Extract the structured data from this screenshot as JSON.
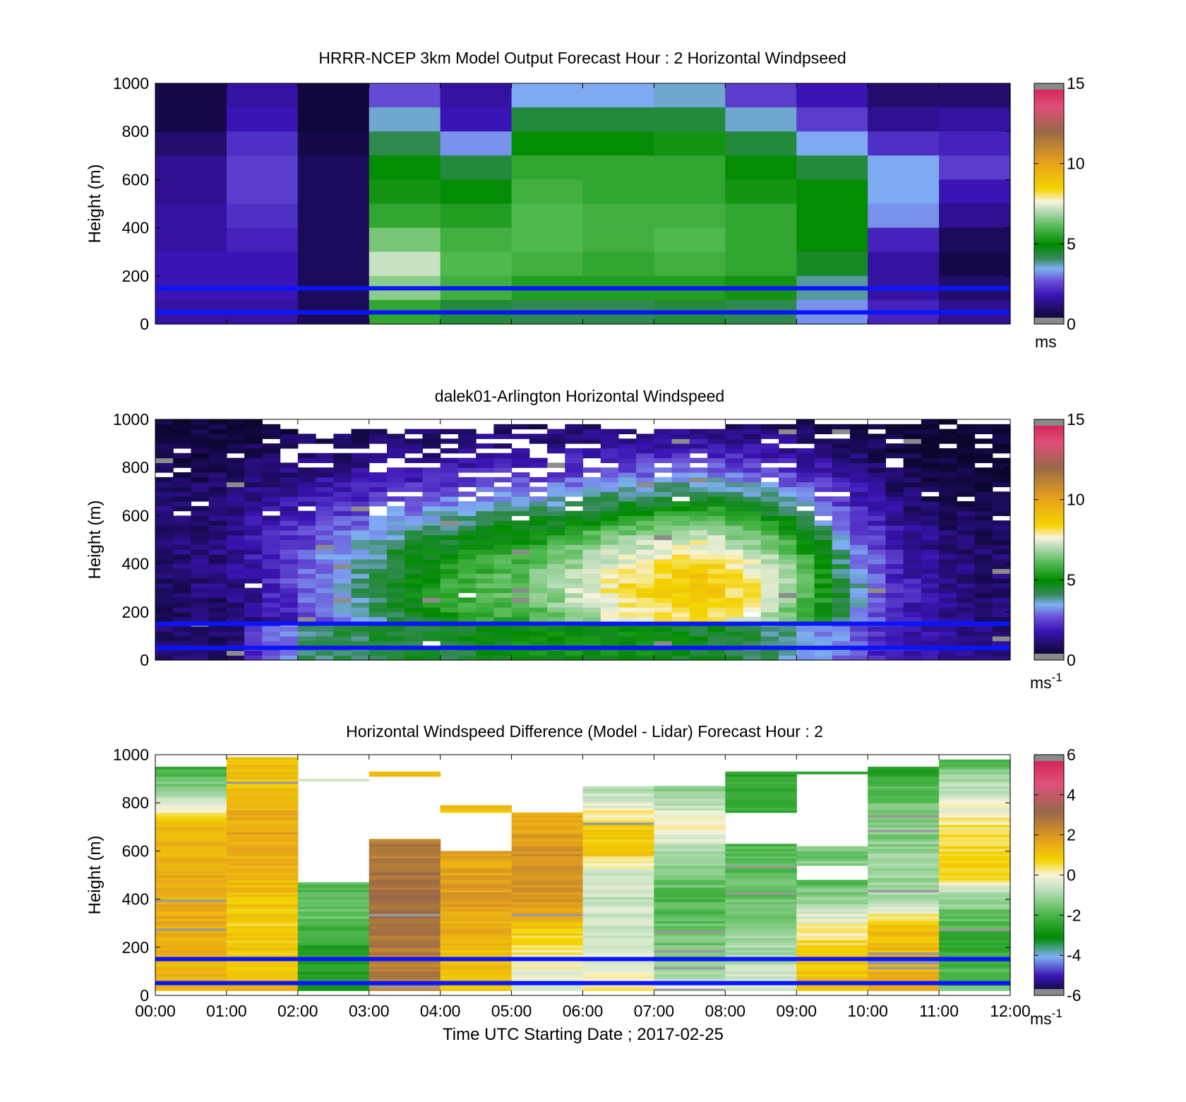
{
  "figure": {
    "xlabel": "Time UTC  Starting Date ; 2017-02-25",
    "xticks": [
      "00:00",
      "01:00",
      "02:00",
      "03:00",
      "04:00",
      "05:00",
      "06:00",
      "07:00",
      "08:00",
      "09:00",
      "10:00",
      "11:00",
      "12:00"
    ],
    "ylabel": "Height (m)",
    "yticks": [
      "0",
      "200",
      "400",
      "600",
      "800",
      "1000"
    ]
  },
  "chart_data": [
    {
      "type": "heatmap",
      "title": "HRRR-NCEP 3km Model Output   Forecast Hour : 2 Horizontal Windpseed",
      "ylabel": "Height (m)",
      "xlim": [
        0,
        12
      ],
      "ylim": [
        0,
        1000
      ],
      "colorbar": {
        "ticks": [
          "0",
          "5",
          "10",
          "15"
        ],
        "range": [
          0,
          15
        ],
        "unit": "ms",
        "scheme": "wind"
      },
      "reference_lines_m": [
        150,
        50
      ],
      "column_hours": [
        0,
        1,
        2,
        3,
        4,
        5,
        6,
        7,
        8,
        9,
        10,
        11
      ],
      "row_heights_m": [
        1000,
        900,
        800,
        700,
        600,
        500,
        400,
        300,
        200,
        100,
        0
      ],
      "values_ms": [
        [
          0.6,
          1.6,
          0.4,
          2.6,
          1.6,
          3.4,
          3.4,
          3.6,
          2.4,
          1.8,
          1.0,
          1.0
        ],
        [
          0.6,
          1.8,
          0.4,
          3.6,
          1.8,
          4.4,
          4.4,
          4.4,
          3.6,
          2.4,
          1.4,
          1.6
        ],
        [
          1.0,
          2.2,
          0.6,
          4.2,
          3.2,
          5.0,
          5.0,
          5.2,
          4.4,
          3.4,
          2.2,
          2.0
        ],
        [
          1.4,
          2.4,
          0.8,
          5.0,
          4.4,
          5.6,
          5.6,
          5.6,
          5.0,
          4.4,
          3.4,
          2.4
        ],
        [
          1.4,
          2.4,
          0.8,
          5.2,
          5.0,
          5.8,
          5.6,
          5.6,
          5.2,
          5.0,
          3.4,
          1.8
        ],
        [
          1.6,
          2.2,
          0.8,
          5.6,
          5.4,
          6.0,
          5.8,
          5.8,
          5.6,
          5.0,
          3.2,
          1.4
        ],
        [
          1.6,
          2.0,
          0.8,
          6.4,
          5.8,
          6.0,
          5.8,
          6.0,
          5.6,
          5.0,
          2.0,
          0.8
        ],
        [
          1.8,
          1.8,
          0.8,
          7.2,
          6.0,
          5.8,
          5.6,
          5.8,
          5.6,
          4.6,
          1.6,
          0.6
        ],
        [
          1.8,
          1.8,
          0.8,
          6.6,
          5.8,
          5.4,
          5.4,
          5.4,
          5.2,
          3.8,
          1.6,
          1.0
        ],
        [
          1.6,
          1.6,
          0.8,
          5.6,
          4.4,
          4.2,
          4.2,
          4.4,
          4.2,
          3.2,
          2.0,
          1.4
        ]
      ]
    },
    {
      "type": "heatmap",
      "title": "dalek01-Arlington  Horizontal Windspeed",
      "ylabel": "Height (m)",
      "xlim": [
        0,
        12
      ],
      "ylim": [
        0,
        1000
      ],
      "colorbar": {
        "ticks": [
          "0",
          "5",
          "10",
          "15"
        ],
        "range": [
          0,
          15
        ],
        "unit": "ms",
        "unit_sup": "-1",
        "scheme": "wind"
      },
      "reference_lines_m": [
        150,
        50
      ],
      "column_hours": [
        0.0,
        0.25,
        0.5,
        0.75,
        1.0,
        1.25,
        1.5,
        1.75,
        2.0,
        2.25,
        2.5,
        2.75,
        3.0,
        3.25,
        3.5,
        3.75,
        4.0,
        4.25,
        4.5,
        4.75,
        5.0,
        5.25,
        5.5,
        5.75,
        6.0,
        6.25,
        6.5,
        6.75,
        7.0,
        7.25,
        7.5,
        7.75,
        8.0,
        8.25,
        8.5,
        8.75,
        9.0,
        9.25,
        9.5,
        9.75,
        10.0,
        10.25,
        10.5,
        10.75,
        11.0,
        11.25,
        11.5,
        11.75
      ],
      "profile_top_m": [
        1000,
        1000,
        1000,
        1000,
        1000,
        990,
        975,
        950,
        935,
        945,
        950,
        960,
        955,
        955,
        960,
        955,
        950,
        955,
        960,
        965,
        975,
        980,
        985,
        975,
        975,
        960,
        960,
        950,
        945,
        950,
        955,
        960,
        965,
        970,
        975,
        980,
        985,
        975,
        975,
        970,
        965,
        970,
        975,
        985,
        985,
        980,
        975,
        970
      ],
      "peak_height_m": [
        450,
        450,
        450,
        450,
        450,
        420,
        400,
        380,
        350,
        340,
        330,
        320,
        310,
        310,
        300,
        300,
        300,
        300,
        300,
        300,
        300,
        300,
        300,
        300,
        300,
        300,
        300,
        300,
        300,
        300,
        300,
        300,
        300,
        300,
        300,
        300,
        300,
        300,
        300,
        300,
        300,
        300,
        300,
        300,
        300,
        300,
        300,
        300
      ],
      "peak_speed_ms": [
        1.0,
        1.0,
        1.1,
        1.1,
        1.3,
        1.6,
        1.9,
        2.2,
        2.6,
        2.9,
        3.2,
        3.6,
        4.0,
        4.4,
        4.7,
        5.0,
        5.2,
        5.4,
        5.6,
        5.8,
        6.0,
        6.2,
        6.4,
        6.8,
        7.1,
        7.5,
        7.8,
        8.0,
        8.2,
        8.5,
        8.6,
        8.4,
        8.0,
        7.6,
        7.1,
        6.5,
        5.8,
        5.0,
        4.0,
        3.2,
        2.6,
        2.0,
        1.7,
        1.4,
        1.2,
        1.1,
        1.0,
        1.0
      ],
      "low_level_speed_ms": [
        1.0,
        1.0,
        1.0,
        1.0,
        1.0,
        2.2,
        2.8,
        3.0,
        4.0,
        4.0,
        4.2,
        4.2,
        4.4,
        4.4,
        4.5,
        4.5,
        4.5,
        4.5,
        4.8,
        4.8,
        5.0,
        5.0,
        5.0,
        5.0,
        5.0,
        5.0,
        5.0,
        5.0,
        4.8,
        4.8,
        4.6,
        4.6,
        4.4,
        4.2,
        4.0,
        3.8,
        3.4,
        3.2,
        3.0,
        2.6,
        2.2,
        2.0,
        1.8,
        1.6,
        1.4,
        1.4,
        1.4,
        1.2
      ]
    },
    {
      "type": "heatmap",
      "title": "Horizontal Windspeed Difference (Model - Lidar) Forecast Hour : 2",
      "ylabel": "Height (m)",
      "xlabel": "Time UTC  Starting Date ; 2017-02-25",
      "xlim": [
        0,
        12
      ],
      "ylim": [
        0,
        1000
      ],
      "colorbar": {
        "ticks": [
          "-6",
          "-4",
          "-2",
          "0",
          "2",
          "4",
          "6"
        ],
        "range": [
          -6,
          6
        ],
        "unit": "ms",
        "unit_sup": "-1",
        "scheme": "diff"
      },
      "reference_lines_m": [
        150,
        50
      ],
      "column_hours": [
        0,
        1,
        2,
        3,
        4,
        5,
        6,
        7,
        8,
        9,
        10,
        11
      ],
      "column_top_m": [
        945,
        990,
        900,
        925,
        790,
        760,
        870,
        870,
        930,
        925,
        945,
        980
      ],
      "blank_ranges_m": [
        [],
        [],
        [
          [
            470,
            890
          ]
        ],
        [
          [
            650,
            905
          ]
        ],
        [
          [
            600,
            690
          ],
          [
            695,
            760
          ]
        ],
        [],
        [],
        [],
        [
          [
            630,
            760
          ]
        ],
        [
          [
            480,
            540
          ],
          [
            620,
            915
          ]
        ],
        [],
        []
      ],
      "difference_profiles_ms": [
        [
          [
            0,
            1.4
          ],
          [
            200,
            1.5
          ],
          [
            500,
            1.5
          ],
          [
            700,
            1.2
          ],
          [
            800,
            -0.6
          ],
          [
            945,
            -2.2
          ]
        ],
        [
          [
            0,
            1.2
          ],
          [
            300,
            0.8
          ],
          [
            500,
            1.2
          ],
          [
            700,
            1.6
          ],
          [
            900,
            1.0
          ],
          [
            990,
            1.0
          ]
        ],
        [
          [
            0,
            -2.6
          ],
          [
            200,
            -2.4
          ],
          [
            350,
            -1.6
          ],
          [
            470,
            -2.0
          ],
          [
            900,
            -0.5
          ]
        ],
        [
          [
            0,
            2.5
          ],
          [
            200,
            2.6
          ],
          [
            400,
            3.0
          ],
          [
            600,
            2.6
          ],
          [
            650,
            2.6
          ],
          [
            905,
            1.5
          ],
          [
            925,
            1.2
          ]
        ],
        [
          [
            0,
            1.0
          ],
          [
            200,
            1.2
          ],
          [
            400,
            1.8
          ],
          [
            600,
            1.6
          ],
          [
            690,
            1.2
          ],
          [
            790,
            1.0
          ]
        ],
        [
          [
            0,
            -0.6
          ],
          [
            200,
            0.4
          ],
          [
            400,
            2.0
          ],
          [
            600,
            2.0
          ],
          [
            760,
            1.4
          ]
        ],
        [
          [
            0,
            0.5
          ],
          [
            200,
            -0.6
          ],
          [
            500,
            -0.6
          ],
          [
            600,
            1.0
          ],
          [
            700,
            0.8
          ],
          [
            870,
            -1.0
          ]
        ],
        [
          [
            0,
            -0.2
          ],
          [
            200,
            -1.4
          ],
          [
            400,
            -2.0
          ],
          [
            600,
            -0.8
          ],
          [
            700,
            0.3
          ],
          [
            870,
            -1.4
          ]
        ],
        [
          [
            0,
            -0.3
          ],
          [
            200,
            -1.0
          ],
          [
            400,
            -1.6
          ],
          [
            630,
            -2.0
          ],
          [
            760,
            -2.2
          ],
          [
            930,
            -2.4
          ]
        ],
        [
          [
            0,
            1.2
          ],
          [
            200,
            0.8
          ],
          [
            300,
            0.0
          ],
          [
            480,
            -2.0
          ],
          [
            540,
            -1.4
          ],
          [
            620,
            -1.6
          ],
          [
            915,
            -2.4
          ]
        ],
        [
          [
            0,
            1.4
          ],
          [
            200,
            1.2
          ],
          [
            300,
            1.0
          ],
          [
            400,
            -1.0
          ],
          [
            600,
            -1.2
          ],
          [
            800,
            -1.6
          ],
          [
            945,
            -2.4
          ]
        ],
        [
          [
            0,
            -1.4
          ],
          [
            200,
            -2.4
          ],
          [
            400,
            -1.2
          ],
          [
            500,
            0.8
          ],
          [
            700,
            0.4
          ],
          [
            900,
            -1.0
          ],
          [
            980,
            -2.0
          ]
        ]
      ]
    }
  ]
}
